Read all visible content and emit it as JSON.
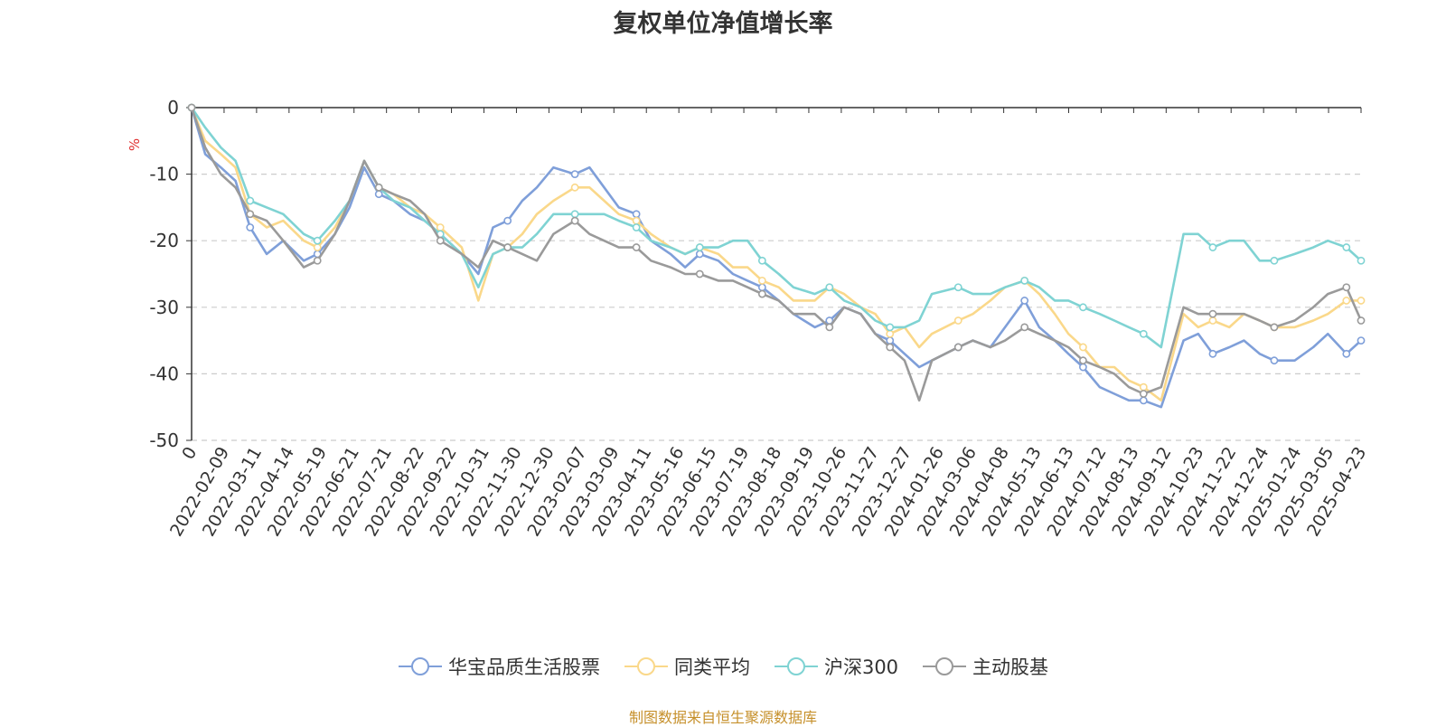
{
  "chart_data": {
    "type": "line",
    "title": "复权单位净值增长率",
    "ylabel": "%",
    "ylim": [
      -50,
      0
    ],
    "yticks": [
      0,
      -10,
      -20,
      -30,
      -40,
      -50
    ],
    "grid": true,
    "legend_position": "bottom",
    "x_tick_labels": [
      "0",
      "2022-02-09",
      "2022-03-11",
      "2022-04-14",
      "2022-05-19",
      "2022-06-21",
      "2022-07-21",
      "2022-08-22",
      "2022-09-22",
      "2022-10-31",
      "2022-11-30",
      "2022-12-30",
      "2023-02-07",
      "2023-03-09",
      "2023-04-11",
      "2023-05-16",
      "2023-06-15",
      "2023-07-19",
      "2023-08-18",
      "2023-09-19",
      "2023-10-26",
      "2023-11-27",
      "2023-12-27",
      "2024-01-26",
      "2024-03-06",
      "2024-04-08",
      "2024-05-13",
      "2024-06-13",
      "2024-07-12",
      "2024-08-13",
      "2024-09-12",
      "2024-10-23",
      "2024-11-22",
      "2024-12-24",
      "2025-01-24",
      "2025-03-05",
      "2025-04-23"
    ],
    "x": [
      "2022-01-10",
      "2022-01-24",
      "2022-02-09",
      "2022-02-24",
      "2022-03-11",
      "2022-03-28",
      "2022-04-14",
      "2022-05-05",
      "2022-05-19",
      "2022-06-06",
      "2022-06-21",
      "2022-07-06",
      "2022-07-21",
      "2022-08-05",
      "2022-08-22",
      "2022-09-06",
      "2022-09-22",
      "2022-10-14",
      "2022-10-31",
      "2022-11-15",
      "2022-11-30",
      "2022-12-15",
      "2022-12-30",
      "2023-01-16",
      "2023-02-07",
      "2023-02-22",
      "2023-03-09",
      "2023-03-24",
      "2023-04-11",
      "2023-04-26",
      "2023-05-16",
      "2023-05-31",
      "2023-06-15",
      "2023-07-04",
      "2023-07-19",
      "2023-08-03",
      "2023-08-18",
      "2023-09-04",
      "2023-09-19",
      "2023-10-11",
      "2023-10-26",
      "2023-11-10",
      "2023-11-27",
      "2023-12-12",
      "2023-12-27",
      "2024-01-11",
      "2024-01-26",
      "2024-02-08",
      "2024-03-06",
      "2024-03-21",
      "2024-04-08",
      "2024-04-23",
      "2024-05-13",
      "2024-05-28",
      "2024-06-13",
      "2024-06-27",
      "2024-07-12",
      "2024-07-29",
      "2024-08-13",
      "2024-08-28",
      "2024-09-12",
      "2024-09-30",
      "2024-10-23",
      "2024-11-07",
      "2024-11-22",
      "2024-12-09",
      "2024-12-24",
      "2025-01-09",
      "2025-01-24",
      "2025-02-14",
      "2025-03-05",
      "2025-03-20",
      "2025-04-08",
      "2025-04-23"
    ],
    "series": [
      {
        "name": "华宝品质生活股票",
        "color": "#7f9fd9",
        "values": [
          0,
          -7,
          -9,
          -11,
          -18,
          -22,
          -20,
          -23,
          -22,
          -19,
          -15,
          -9,
          -13,
          -14,
          -16,
          -17,
          -19,
          -22,
          -25,
          -18,
          -17,
          -14,
          -12,
          -9,
          -10,
          -9,
          -12,
          -15,
          -16,
          -20,
          -22,
          -24,
          -22,
          -23,
          -25,
          -26,
          -27,
          -29,
          -31,
          -33,
          -32,
          -30,
          -31,
          -34,
          -35,
          -37,
          -39,
          -38,
          -36,
          -35,
          -36,
          -33,
          -29,
          -33,
          -35,
          -37,
          -39,
          -42,
          -43,
          -44,
          -44,
          -45,
          -35,
          -34,
          -37,
          -36,
          -35,
          -37,
          -38,
          -38,
          -36,
          -34,
          -37,
          -35
        ]
      },
      {
        "name": "同类平均",
        "color": "#fad88a",
        "values": [
          0,
          -5,
          -7,
          -9,
          -16,
          -18,
          -17,
          -20,
          -21,
          -18,
          -14,
          -8,
          -12,
          -13,
          -15,
          -16,
          -18,
          -21,
          -29,
          -22,
          -21,
          -19,
          -16,
          -14,
          -12,
          -12,
          -14,
          -16,
          -17,
          -19,
          -21,
          -22,
          -21,
          -22,
          -24,
          -24,
          -26,
          -27,
          -29,
          -29,
          -27,
          -28,
          -30,
          -31,
          -34,
          -33,
          -36,
          -34,
          -32,
          -31,
          -29,
          -27,
          -26,
          -28,
          -31,
          -34,
          -36,
          -39,
          -39,
          -41,
          -42,
          -44,
          -31,
          -33,
          -32,
          -33,
          -31,
          -32,
          -33,
          -33,
          -32,
          -31,
          -29,
          -29
        ]
      },
      {
        "name": "沪深300",
        "color": "#7fd3d3",
        "values": [
          0,
          -3,
          -6,
          -8,
          -14,
          -15,
          -16,
          -19,
          -20,
          -17,
          -14,
          -8,
          -12,
          -14,
          -15,
          -17,
          -19,
          -22,
          -27,
          -22,
          -21,
          -21,
          -19,
          -16,
          -16,
          -16,
          -16,
          -17,
          -18,
          -20,
          -21,
          -22,
          -21,
          -21,
          -20,
          -20,
          -23,
          -25,
          -27,
          -28,
          -27,
          -29,
          -30,
          -32,
          -33,
          -33,
          -32,
          -28,
          -27,
          -28,
          -28,
          -27,
          -26,
          -27,
          -29,
          -29,
          -30,
          -31,
          -32,
          -33,
          -34,
          -36,
          -19,
          -19,
          -21,
          -20,
          -20,
          -23,
          -23,
          -22,
          -21,
          -20,
          -21,
          -23
        ]
      },
      {
        "name": "主动股基",
        "color": "#9a9a9a",
        "values": [
          0,
          -6,
          -10,
          -12,
          -16,
          -17,
          -20,
          -24,
          -23,
          -19,
          -14,
          -8,
          -12,
          -13,
          -14,
          -16,
          -20,
          -22,
          -24,
          -20,
          -21,
          -22,
          -23,
          -19,
          -17,
          -19,
          -20,
          -21,
          -21,
          -23,
          -24,
          -25,
          -25,
          -26,
          -26,
          -27,
          -28,
          -29,
          -31,
          -31,
          -33,
          -30,
          -31,
          -34,
          -36,
          -38,
          -44,
          -38,
          -36,
          -35,
          -36,
          -35,
          -33,
          -34,
          -35,
          -36,
          -38,
          -39,
          -40,
          -42,
          -43,
          -42,
          -30,
          -31,
          -31,
          -31,
          -31,
          -32,
          -33,
          -32,
          -30,
          -28,
          -27,
          -32
        ]
      }
    ]
  },
  "source_note": "制图数据来自恒生聚源数据库"
}
